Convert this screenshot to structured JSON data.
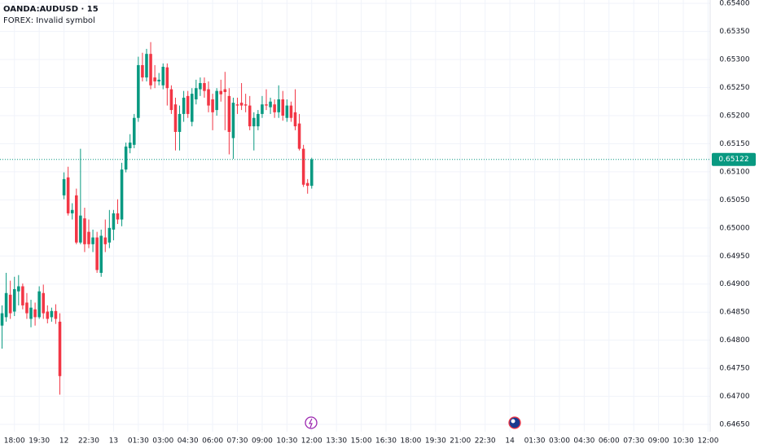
{
  "chart_data": {
    "type": "candlestick",
    "title": "OANDA:AUDUSD · 15",
    "subtitle": "FOREX: Invalid symbol",
    "up_color": "#089981",
    "down_color": "#f23645",
    "grid": true,
    "open": [
      0.64826,
      0.64841,
      0.64881,
      0.64851,
      0.64887,
      0.64896,
      0.64867,
      0.64838,
      0.64855,
      0.64841,
      0.64884,
      0.64851,
      0.64841,
      0.64852,
      0.64833,
      0.65058,
      0.6509,
      0.65026,
      0.65058,
      0.64974,
      0.65017,
      0.64993,
      0.64971,
      0.64983,
      0.6492,
      0.64983,
      0.64974,
      0.64997,
      0.65026,
      0.65015,
      0.65104,
      0.65142,
      0.65148,
      0.65196,
      0.6529,
      0.65268,
      0.6531,
      0.65268,
      0.65261,
      0.65254,
      0.65286,
      0.65247,
      0.6522,
      0.65171,
      0.65203,
      0.65235,
      0.65189,
      0.65229,
      0.65247,
      0.65258,
      0.65247,
      0.65229,
      0.6521,
      0.65244,
      0.65247,
      0.65235,
      0.6516,
      0.6522,
      0.65223,
      0.6522,
      0.65218,
      0.65181,
      0.65181,
      0.65203,
      0.6522,
      0.65215,
      0.6522,
      0.65206,
      0.65229,
      0.65196,
      0.65218,
      0.65206,
      0.65186,
      0.65141,
      0.6508,
      0.65075
    ],
    "high": [
      0.64862,
      0.6492,
      0.64906,
      0.64913,
      0.64916,
      0.64901,
      0.64884,
      0.64872,
      0.64867,
      0.64896,
      0.64899,
      0.64862,
      0.64858,
      0.64864,
      0.64848,
      0.65099,
      0.65109,
      0.65044,
      0.6507,
      0.65141,
      0.65036,
      0.65015,
      0.64997,
      0.64993,
      0.64997,
      0.65015,
      0.65032,
      0.65032,
      0.65051,
      0.65116,
      0.65152,
      0.65167,
      0.65203,
      0.65305,
      0.65312,
      0.65319,
      0.65331,
      0.6529,
      0.65276,
      0.65293,
      0.65293,
      0.65254,
      0.65232,
      0.65218,
      0.65244,
      0.65244,
      0.65249,
      0.65264,
      0.65268,
      0.65268,
      0.65261,
      0.65239,
      0.65249,
      0.65264,
      0.65278,
      0.65249,
      0.65232,
      0.65232,
      0.65258,
      0.65239,
      0.65235,
      0.65206,
      0.6521,
      0.65235,
      0.65247,
      0.65232,
      0.65229,
      0.65254,
      0.65244,
      0.65229,
      0.65225,
      0.65247,
      0.65203,
      0.65148,
      0.65087,
      0.65125
    ],
    "low": [
      0.64785,
      0.64833,
      0.64838,
      0.64843,
      0.64862,
      0.64855,
      0.64838,
      0.64823,
      0.64826,
      0.64838,
      0.64838,
      0.6483,
      0.64833,
      0.64829,
      0.64703,
      0.65051,
      0.65022,
      0.65015,
      0.64971,
      0.64971,
      0.64957,
      0.64964,
      0.64957,
      0.6492,
      0.64913,
      0.64957,
      0.64964,
      0.64978,
      0.65007,
      0.65003,
      0.65099,
      0.65133,
      0.65142,
      0.65189,
      0.65261,
      0.65261,
      0.65247,
      0.65249,
      0.65254,
      0.65247,
      0.65218,
      0.65203,
      0.65138,
      0.65138,
      0.65189,
      0.65196,
      0.65181,
      0.6522,
      0.65235,
      0.65232,
      0.65206,
      0.65174,
      0.652,
      0.65225,
      0.65174,
      0.65131,
      0.65123,
      0.65203,
      0.6521,
      0.65206,
      0.65174,
      0.65138,
      0.65174,
      0.65196,
      0.6521,
      0.65203,
      0.65196,
      0.65196,
      0.65191,
      0.65189,
      0.65189,
      0.65174,
      0.65138,
      0.65073,
      0.65061,
      0.6507
    ],
    "close": [
      0.64848,
      0.64884,
      0.64848,
      0.64891,
      0.64896,
      0.64862,
      0.64848,
      0.64858,
      0.64841,
      0.64887,
      0.64848,
      0.64838,
      0.64852,
      0.64838,
      0.64736,
      0.65087,
      0.65026,
      0.65032,
      0.64974,
      0.65022,
      0.64971,
      0.64971,
      0.64983,
      0.64925,
      0.64986,
      0.64971,
      0.65,
      0.65026,
      0.65015,
      0.65104,
      0.65145,
      0.65152,
      0.65196,
      0.6529,
      0.65268,
      0.6531,
      0.65254,
      0.65261,
      0.65264,
      0.65287,
      0.65249,
      0.6521,
      0.65171,
      0.65203,
      0.65232,
      0.65203,
      0.65239,
      0.65249,
      0.65258,
      0.65244,
      0.65218,
      0.65206,
      0.65244,
      0.65238,
      0.65242,
      0.65171,
      0.65223,
      0.65218,
      0.65218,
      0.65218,
      0.65181,
      0.65196,
      0.65203,
      0.6522,
      0.65218,
      0.65225,
      0.65206,
      0.65229,
      0.652,
      0.65218,
      0.65196,
      0.65181,
      0.65141,
      0.65077,
      0.65075,
      0.65122
    ],
    "last_price": 0.65122,
    "last_price_color": "#089981",
    "xlim": [
      -0.5,
      171.5
    ],
    "xticks": [
      {
        "value": 3,
        "label": "18:00"
      },
      {
        "value": 9,
        "label": "19:30"
      },
      {
        "value": 15,
        "label": "12"
      },
      {
        "value": 21,
        "label": "22:30"
      },
      {
        "value": 27,
        "label": "13"
      },
      {
        "value": 33,
        "label": "01:30"
      },
      {
        "value": 39,
        "label": "03:00"
      },
      {
        "value": 45,
        "label": "04:30"
      },
      {
        "value": 51,
        "label": "06:00"
      },
      {
        "value": 57,
        "label": "07:30"
      },
      {
        "value": 63,
        "label": "09:00"
      },
      {
        "value": 69,
        "label": "10:30"
      },
      {
        "value": 75,
        "label": "12:00"
      },
      {
        "value": 81,
        "label": "13:30"
      },
      {
        "value": 87,
        "label": "15:00"
      },
      {
        "value": 93,
        "label": "16:30"
      },
      {
        "value": 99,
        "label": "18:00"
      },
      {
        "value": 105,
        "label": "19:30"
      },
      {
        "value": 111,
        "label": "21:00"
      },
      {
        "value": 117,
        "label": "22:30"
      },
      {
        "value": 123,
        "label": "14"
      },
      {
        "value": 129,
        "label": "01:30"
      },
      {
        "value": 135,
        "label": "03:00"
      },
      {
        "value": 141,
        "label": "04:30"
      },
      {
        "value": 147,
        "label": "06:00"
      },
      {
        "value": 153,
        "label": "07:30"
      },
      {
        "value": 159,
        "label": "09:00"
      },
      {
        "value": 165,
        "label": "10:30"
      },
      {
        "value": 171,
        "label": "12:00"
      }
    ],
    "ylim": [
      0.64637,
      0.65406
    ],
    "yticks": [
      {
        "value": 0.654,
        "label": "0.65400"
      },
      {
        "value": 0.6535,
        "label": "0.65350"
      },
      {
        "value": 0.653,
        "label": "0.65300"
      },
      {
        "value": 0.6525,
        "label": "0.65250"
      },
      {
        "value": 0.652,
        "label": "0.65200"
      },
      {
        "value": 0.6515,
        "label": "0.65150"
      },
      {
        "value": 0.651,
        "label": "0.65100"
      },
      {
        "value": 0.6505,
        "label": "0.65050"
      },
      {
        "value": 0.65,
        "label": "0.65000"
      },
      {
        "value": 0.6495,
        "label": "0.64950"
      },
      {
        "value": 0.649,
        "label": "0.64900"
      },
      {
        "value": 0.6485,
        "label": "0.64850"
      },
      {
        "value": 0.648,
        "label": "0.64800"
      },
      {
        "value": 0.6475,
        "label": "0.64750"
      },
      {
        "value": 0.647,
        "label": "0.64700"
      },
      {
        "value": 0.6465,
        "label": "0.64650"
      }
    ]
  }
}
